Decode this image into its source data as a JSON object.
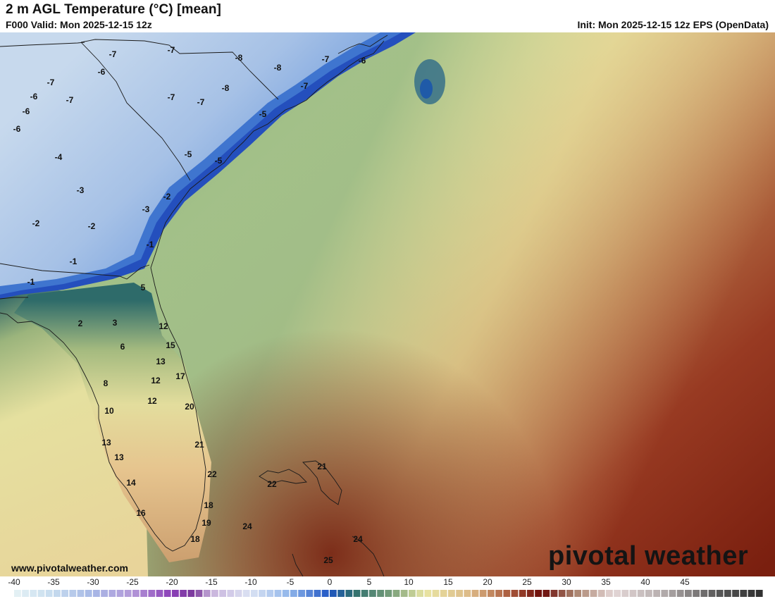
{
  "header": {
    "title": "2 m AGL Temperature (°C) [mean]",
    "valid": "F000 Valid: Mon 2025-12-15 12z",
    "init": "Init: Mon 2025-12-15 12z EPS (OpenData)"
  },
  "footer": {
    "url": "www.pivotalweather.com",
    "logo": "pivotal weather"
  },
  "colorbar": {
    "ticks": [
      "-40",
      "-35",
      "-30",
      "-25",
      "-20",
      "-15",
      "-10",
      "-5",
      "0",
      "5",
      "10",
      "15",
      "20",
      "25",
      "30",
      "35",
      "40",
      "45"
    ],
    "min": -40,
    "max": 55
  },
  "map_labels": [
    {
      "text": "-7",
      "v": -7
    },
    {
      "text": "-7",
      "v": -7
    },
    {
      "text": "-8",
      "v": -8
    },
    {
      "text": "-6",
      "v": -6
    },
    {
      "text": "-8",
      "v": -8
    },
    {
      "text": "-7",
      "v": -7
    },
    {
      "text": "-6",
      "v": -6
    },
    {
      "text": "-7",
      "v": -7
    },
    {
      "text": "-8",
      "v": -8
    },
    {
      "text": "-7",
      "v": -7
    },
    {
      "text": "-6",
      "v": -6
    },
    {
      "text": "-7",
      "v": -7
    },
    {
      "text": "-7",
      "v": -7
    },
    {
      "text": "-6",
      "v": -6
    },
    {
      "text": "-6",
      "v": -6
    },
    {
      "text": "-7",
      "v": -7
    },
    {
      "text": "-4",
      "v": -4
    },
    {
      "text": "-5",
      "v": -5
    },
    {
      "text": "-5",
      "v": -5
    },
    {
      "text": "-5",
      "v": -5
    },
    {
      "text": "-3",
      "v": -3
    },
    {
      "text": "-2",
      "v": -2
    },
    {
      "text": "-3",
      "v": -3
    },
    {
      "text": "-2",
      "v": -2
    },
    {
      "text": "-2",
      "v": -2
    },
    {
      "text": "-1",
      "v": -1
    },
    {
      "text": "-1",
      "v": -1
    },
    {
      "text": "-1",
      "v": -1
    },
    {
      "text": "5",
      "v": 5
    },
    {
      "text": "2",
      "v": 2
    },
    {
      "text": "3",
      "v": 3
    },
    {
      "text": "12",
      "v": 12
    },
    {
      "text": "6",
      "v": 6
    },
    {
      "text": "15",
      "v": 15
    },
    {
      "text": "13",
      "v": 13
    },
    {
      "text": "8",
      "v": 8
    },
    {
      "text": "12",
      "v": 12
    },
    {
      "text": "17",
      "v": 17
    },
    {
      "text": "12",
      "v": 12
    },
    {
      "text": "10",
      "v": 10
    },
    {
      "text": "20",
      "v": 20
    },
    {
      "text": "13",
      "v": 13
    },
    {
      "text": "21",
      "v": 21
    },
    {
      "text": "13",
      "v": 13
    },
    {
      "text": "21",
      "v": 21
    },
    {
      "text": "22",
      "v": 22
    },
    {
      "text": "22",
      "v": 22
    },
    {
      "text": "14",
      "v": 14
    },
    {
      "text": "18",
      "v": 18
    },
    {
      "text": "16",
      "v": 16
    },
    {
      "text": "19",
      "v": 19
    },
    {
      "text": "24",
      "v": 24
    },
    {
      "text": "18",
      "v": 18
    },
    {
      "text": "24",
      "v": 24
    },
    {
      "text": "25",
      "v": 25
    }
  ]
}
